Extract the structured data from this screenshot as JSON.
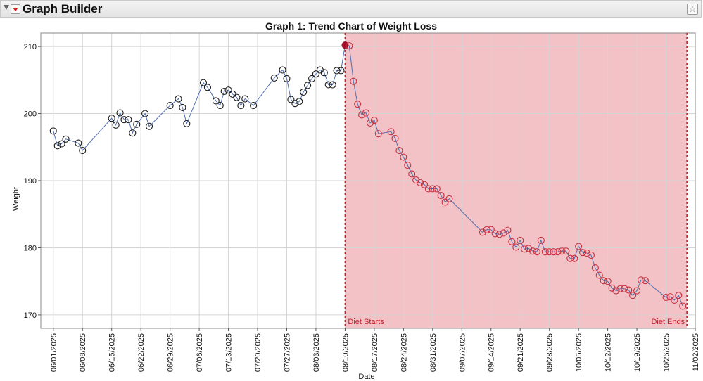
{
  "window": {
    "title": "Graph Builder",
    "star_icon": "star-icon"
  },
  "chart_data": {
    "type": "line",
    "title": "Graph 1: Trend Chart of Weight Loss",
    "xlabel": "Date",
    "ylabel": "Weight",
    "ylim": [
      168,
      212
    ],
    "xlim": [
      "2025-05-29",
      "2025-11-02"
    ],
    "yticks": [
      170,
      180,
      190,
      200,
      210
    ],
    "xticks": [
      "06/01/2025",
      "06/08/2025",
      "06/15/2025",
      "06/22/2025",
      "06/29/2025",
      "07/06/2025",
      "07/13/2025",
      "07/20/2025",
      "07/27/2025",
      "08/03/2025",
      "08/10/2025",
      "08/17/2025",
      "08/24/2025",
      "08/31/2025",
      "09/07/2025",
      "09/14/2025",
      "09/21/2025",
      "09/28/2025",
      "10/05/2025",
      "10/12/2025",
      "10/19/2025",
      "10/26/2025",
      "11/02/2025"
    ],
    "grid": true,
    "colors": {
      "line": "#4f6fb0",
      "before_marker": "#1a1a1a",
      "after_marker": "#c83040",
      "region": "#f2c2c6",
      "ref_line": "#c0202a",
      "start_marker": "#a0102a"
    },
    "annotations": {
      "diet_start_label": "Diet Starts",
      "diet_end_label": "Diet Ends",
      "diet_start_date": "2025-08-10",
      "diet_end_date": "2025-10-31"
    },
    "series": [
      {
        "x": [
          "2025-06-01",
          "2025-06-02",
          "2025-06-03",
          "2025-06-04",
          "2025-06-07",
          "2025-06-08",
          "2025-06-15",
          "2025-06-16",
          "2025-06-17",
          "2025-06-18",
          "2025-06-19",
          "2025-06-20",
          "2025-06-21",
          "2025-06-23",
          "2025-06-24",
          "2025-06-29",
          "2025-07-01",
          "2025-07-02",
          "2025-07-03",
          "2025-07-07",
          "2025-07-08",
          "2025-07-10",
          "2025-07-11",
          "2025-07-12",
          "2025-07-13",
          "2025-07-14",
          "2025-07-15",
          "2025-07-16",
          "2025-07-17",
          "2025-07-19",
          "2025-07-24",
          "2025-07-26",
          "2025-07-27",
          "2025-07-28",
          "2025-07-29",
          "2025-07-30",
          "2025-07-31",
          "2025-08-01",
          "2025-08-02",
          "2025-08-03",
          "2025-08-04",
          "2025-08-05",
          "2025-08-06",
          "2025-08-07",
          "2025-08-08",
          "2025-08-09",
          "2025-08-10",
          "2025-08-11",
          "2025-08-12",
          "2025-08-13",
          "2025-08-14",
          "2025-08-15",
          "2025-08-16",
          "2025-08-17",
          "2025-08-18",
          "2025-08-21",
          "2025-08-22",
          "2025-08-23",
          "2025-08-24",
          "2025-08-25",
          "2025-08-26",
          "2025-08-27",
          "2025-08-28",
          "2025-08-29",
          "2025-08-30",
          "2025-08-31",
          "2025-09-01",
          "2025-09-02",
          "2025-09-03",
          "2025-09-04",
          "2025-09-12",
          "2025-09-13",
          "2025-09-14",
          "2025-09-15",
          "2025-09-16",
          "2025-09-17",
          "2025-09-18",
          "2025-09-19",
          "2025-09-20",
          "2025-09-21",
          "2025-09-22",
          "2025-09-23",
          "2025-09-24",
          "2025-09-25",
          "2025-09-26",
          "2025-09-27",
          "2025-09-28",
          "2025-09-29",
          "2025-09-30",
          "2025-10-01",
          "2025-10-02",
          "2025-10-03",
          "2025-10-04",
          "2025-10-05",
          "2025-10-06",
          "2025-10-07",
          "2025-10-08",
          "2025-10-09",
          "2025-10-10",
          "2025-10-11",
          "2025-10-12",
          "2025-10-13",
          "2025-10-14",
          "2025-10-15",
          "2025-10-16",
          "2025-10-17",
          "2025-10-18",
          "2025-10-19",
          "2025-10-20",
          "2025-10-21",
          "2025-10-26",
          "2025-10-27",
          "2025-10-28",
          "2025-10-29",
          "2025-10-30"
        ],
        "values": [
          197.4,
          195.2,
          195.5,
          196.2,
          195.6,
          194.5,
          199.3,
          198.3,
          200.1,
          199.1,
          199.1,
          197.1,
          198.4,
          200.0,
          198.1,
          201.2,
          202.2,
          200.9,
          198.5,
          204.6,
          203.9,
          201.9,
          201.2,
          203.3,
          203.5,
          202.9,
          202.4,
          201.2,
          202.2,
          201.2,
          205.3,
          206.5,
          205.2,
          202.1,
          201.5,
          201.8,
          203.2,
          204.2,
          205.2,
          205.9,
          206.5,
          206.1,
          204.3,
          204.3,
          206.4,
          206.4,
          210.2,
          210.1,
          204.8,
          201.4,
          199.8,
          200.1,
          198.6,
          199.0,
          197.0,
          197.3,
          196.3,
          194.5,
          193.5,
          192.3,
          191.0,
          190.1,
          189.7,
          189.4,
          188.8,
          188.8,
          188.8,
          187.8,
          186.8,
          187.3,
          182.3,
          182.7,
          182.7,
          182.1,
          182.0,
          182.2,
          182.6,
          180.9,
          180.1,
          181.1,
          179.8,
          179.9,
          179.5,
          179.4,
          181.1,
          179.4,
          179.4,
          179.4,
          179.4,
          179.5,
          179.5,
          178.4,
          178.4,
          180.2,
          179.3,
          179.2,
          178.9,
          177.0,
          175.9,
          175.1,
          175.0,
          174.0,
          173.6,
          173.9,
          173.9,
          173.7,
          172.9,
          173.6,
          175.2,
          175.1,
          172.6,
          172.7,
          172.2,
          172.9,
          171.3
        ]
      }
    ]
  }
}
